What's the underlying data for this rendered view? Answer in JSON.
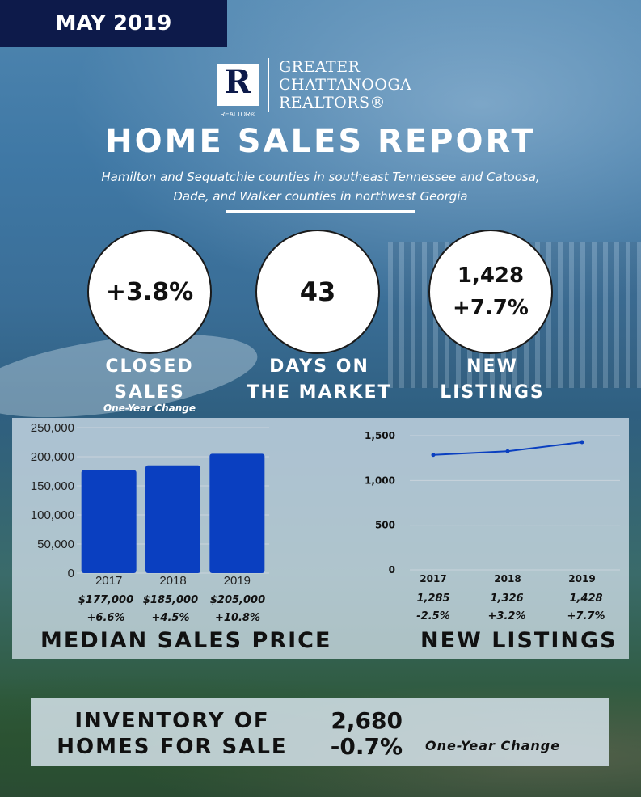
{
  "header": {
    "date": "MAY 2019",
    "logo": {
      "mark": "R",
      "mark_caption": "REALTOR®",
      "lines": [
        "GREATER",
        "CHATTANOOGA",
        "REALTORS®"
      ]
    },
    "title": "HOME SALES REPORT",
    "subtitle_line1": "Hamilton and Sequatchie counties in southeast Tennessee and Catoosa,",
    "subtitle_line2": "Dade, and Walker counties in northwest Georgia"
  },
  "stats": [
    {
      "value": "+3.8%",
      "value2": "",
      "label1": "CLOSED",
      "label2": "SALES"
    },
    {
      "value": "43",
      "value2": "",
      "label1": "DAYS ON",
      "label2": "THE MARKET"
    },
    {
      "value": "1,428",
      "value2": "+7.7%",
      "label1": "NEW",
      "label2": "LISTINGS"
    }
  ],
  "one_year_change_label": "One-Year Change",
  "chart_data": [
    {
      "type": "bar",
      "title": "MEDIAN SALES PRICE",
      "categories": [
        "2017",
        "2018",
        "2019"
      ],
      "values": [
        177000,
        185000,
        205000
      ],
      "ylim": [
        0,
        250000
      ],
      "yticks": [
        0,
        50000,
        100000,
        150000,
        200000,
        250000
      ],
      "ytick_labels": [
        "0",
        "50,000",
        "100,000",
        "150,000",
        "200,000",
        "250,000"
      ],
      "value_labels": [
        "$177,000",
        "$185,000",
        "$205,000"
      ],
      "change_labels": [
        "+6.6%",
        "+4.5%",
        "+10.8%"
      ],
      "color": "#0a3fc0",
      "grid": true
    },
    {
      "type": "line",
      "title": "NEW LISTINGS",
      "categories": [
        "2017",
        "2018",
        "2019"
      ],
      "values": [
        1285,
        1326,
        1428
      ],
      "ylim": [
        0,
        1500
      ],
      "yticks": [
        0,
        500,
        1000,
        1500
      ],
      "ytick_labels": [
        "0",
        "500",
        "1,000",
        "1,500"
      ],
      "value_labels": [
        "1,285",
        "1,326",
        "1,428"
      ],
      "change_labels": [
        "-2.5%",
        "+3.2%",
        "+7.7%"
      ],
      "color": "#0a3fc0",
      "grid": true
    }
  ],
  "inventory": {
    "label1": "INVENTORY OF",
    "label2": "HOMES FOR SALE",
    "value": "2,680",
    "change": "-0.7%",
    "note": "One-Year Change"
  }
}
